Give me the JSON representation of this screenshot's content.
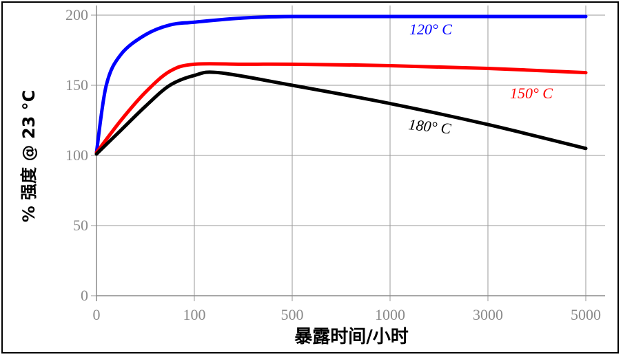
{
  "chart_data": {
    "type": "line",
    "ylabel": "% 强度 @ 23 °C",
    "xlabel": "暴露时间/小时",
    "x_ticks": [
      "0",
      "100",
      "500",
      "1000",
      "3000",
      "5000"
    ],
    "y_ticks": [
      "0",
      "50",
      "100",
      "150",
      "200"
    ],
    "ylim": [
      0,
      200
    ],
    "grid": true,
    "series": [
      {
        "name": "120° C",
        "color": "#0000ff",
        "x": [
          0,
          10,
          25,
          50,
          75,
          100,
          300,
          500,
          1000,
          3000,
          5000
        ],
        "y": [
          102,
          150,
          172,
          186,
          193,
          195,
          198,
          199,
          199,
          199,
          199
        ]
      },
      {
        "name": "150° C",
        "color": "#ff0000",
        "x": [
          0,
          25,
          50,
          75,
          100,
          300,
          500,
          1000,
          3000,
          5000
        ],
        "y": [
          102,
          125,
          145,
          160,
          165,
          165,
          165,
          164,
          162,
          159
        ]
      },
      {
        "name": "180° C",
        "color": "#000000",
        "x": [
          0,
          25,
          50,
          75,
          100,
          200,
          500,
          1000,
          3000,
          5000
        ],
        "y": [
          101,
          118,
          135,
          150,
          157,
          159,
          150,
          137,
          122,
          105
        ]
      }
    ]
  }
}
